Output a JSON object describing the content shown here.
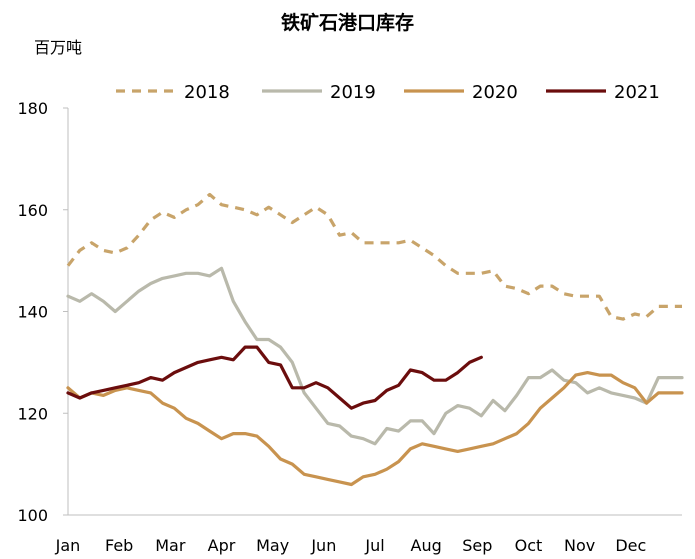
{
  "chart_data": {
    "type": "line",
    "title": "铁矿石港口库存",
    "ylabel": "百万吨",
    "xlabel": "",
    "ylim": [
      100,
      180
    ],
    "yticks": [
      "100",
      "120",
      "140",
      "160",
      "180"
    ],
    "categories": [
      "Jan",
      "Feb",
      "Mar",
      "Apr",
      "May",
      "Jun",
      "Jul",
      "Aug",
      "Sep",
      "Oct",
      "Nov",
      "Dec"
    ],
    "x_range": [
      0,
      52
    ],
    "legend_position": "top",
    "series": [
      {
        "name": "2018",
        "color": "#c8a46a",
        "dash": "dashed",
        "x": [
          0,
          1,
          2,
          3,
          4,
          5,
          6,
          7,
          8,
          9,
          10,
          11,
          12,
          13,
          14,
          15,
          16,
          17,
          18,
          19,
          20,
          21,
          22,
          23,
          24,
          25,
          26,
          27,
          28,
          29,
          30,
          31,
          32,
          33,
          34,
          35,
          36,
          37,
          38,
          39,
          40,
          41,
          42,
          43,
          44,
          45,
          46,
          47,
          48,
          49,
          50,
          51,
          52
        ],
        "values": [
          149,
          152,
          153.5,
          152,
          151.5,
          152.5,
          155,
          158,
          159.5,
          158.5,
          160,
          161,
          163,
          161,
          160.5,
          160,
          159,
          160.5,
          159,
          157.5,
          159,
          160.5,
          159,
          155,
          155.5,
          153.5,
          153.5,
          153.5,
          153.5,
          154,
          152.5,
          151,
          149,
          147.5,
          147.5,
          147.5,
          148,
          145,
          144.5,
          143.5,
          145,
          145,
          143.5,
          143,
          143,
          143,
          139,
          138.5,
          139.5,
          139,
          141,
          141,
          141
        ]
      },
      {
        "name": "2019",
        "color": "#b9b9ab",
        "dash": "solid",
        "x": [
          0,
          1,
          2,
          3,
          4,
          5,
          6,
          7,
          8,
          9,
          10,
          11,
          12,
          13,
          14,
          15,
          16,
          17,
          18,
          19,
          20,
          21,
          22,
          23,
          24,
          25,
          26,
          27,
          28,
          29,
          30,
          31,
          32,
          33,
          34,
          35,
          36,
          37,
          38,
          39,
          40,
          41,
          42,
          43,
          44,
          45,
          46,
          47,
          48,
          49,
          50,
          51,
          52
        ],
        "values": [
          143,
          142,
          143.5,
          142,
          140,
          142,
          144,
          145.5,
          146.5,
          147,
          147.5,
          147.5,
          147,
          148.5,
          142,
          138,
          134.5,
          134.5,
          133,
          130,
          124,
          121,
          118,
          117.5,
          115.5,
          115,
          114,
          117,
          116.5,
          118.5,
          118.5,
          116,
          120,
          121.5,
          121,
          119.5,
          122.5,
          120.5,
          123.5,
          127,
          127,
          128.5,
          126.5,
          126,
          124,
          125,
          124,
          123.5,
          123,
          122,
          127,
          127,
          127
        ]
      },
      {
        "name": "2020",
        "color": "#c8934f",
        "dash": "solid",
        "x": [
          0,
          1,
          2,
          3,
          4,
          5,
          6,
          7,
          8,
          9,
          10,
          11,
          12,
          13,
          14,
          15,
          16,
          17,
          18,
          19,
          20,
          21,
          22,
          23,
          24,
          25,
          26,
          27,
          28,
          29,
          30,
          31,
          32,
          33,
          34,
          35,
          36,
          37,
          38,
          39,
          40,
          41,
          42,
          43,
          44,
          45,
          46,
          47,
          48,
          49,
          50,
          51,
          52
        ],
        "values": [
          125,
          123,
          124,
          123.5,
          124.5,
          125,
          124.5,
          124,
          122,
          121,
          119,
          118,
          116.5,
          115,
          116,
          116,
          115.5,
          113.5,
          111,
          110,
          108,
          107.5,
          107,
          106.5,
          106,
          107.5,
          108,
          109,
          110.5,
          113,
          114,
          113.5,
          113,
          112.5,
          113,
          113.5,
          114,
          115,
          116,
          118,
          121,
          123,
          125,
          127.5,
          128,
          127.5,
          127.5,
          126,
          125,
          122,
          124,
          124,
          124
        ]
      },
      {
        "name": "2021",
        "color": "#6b0d0d",
        "dash": "solid",
        "x": [
          0,
          1,
          2,
          3,
          4,
          5,
          6,
          7,
          8,
          9,
          10,
          11,
          12,
          13,
          14,
          15,
          16,
          17,
          18,
          19,
          20,
          21,
          22,
          23,
          24,
          25,
          26,
          27,
          28,
          29,
          30,
          31,
          32,
          33,
          34,
          35
        ],
        "values": [
          124,
          123,
          124,
          124.5,
          125,
          125.5,
          126,
          127,
          126.5,
          128,
          129,
          130,
          130.5,
          131,
          130.5,
          133,
          133,
          130,
          129.5,
          125,
          125,
          126,
          125,
          123,
          121,
          122,
          122.5,
          124.5,
          125.5,
          128.5,
          128,
          126.5,
          126.5,
          128,
          130,
          131
        ]
      }
    ]
  }
}
